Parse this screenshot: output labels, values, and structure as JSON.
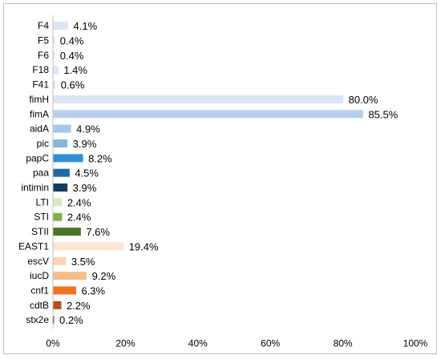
{
  "chart_data": {
    "type": "bar",
    "orientation": "horizontal",
    "title": "",
    "xlabel": "",
    "ylabel": "",
    "xlim": [
      0,
      100
    ],
    "grid": false,
    "legend": "none",
    "x_ticks": [
      "0%",
      "20%",
      "40%",
      "60%",
      "80%",
      "100%"
    ],
    "categories": [
      "F4",
      "F5",
      "F6",
      "F18",
      "F41",
      "fimH",
      "fimA",
      "aidA",
      "pic",
      "papC",
      "paa",
      "intimin",
      "LTI",
      "STI",
      "STII",
      "EAST1",
      "escV",
      "iucD",
      "cnf1",
      "cdtB",
      "stx2e"
    ],
    "values": [
      4.1,
      0.4,
      0.4,
      1.4,
      0.6,
      80.0,
      85.5,
      4.9,
      3.9,
      8.2,
      4.5,
      3.9,
      2.4,
      2.4,
      7.6,
      19.4,
      3.5,
      9.2,
      6.3,
      2.2,
      0.2
    ],
    "data_labels": [
      "4.1%",
      "0.4%",
      "0.4%",
      "1.4%",
      "0.6%",
      "80.0%",
      "85.5%",
      "4.9%",
      "3.9%",
      "8.2%",
      "4.5%",
      "3.9%",
      "2.4%",
      "2.4%",
      "7.6%",
      "19.4%",
      "3.5%",
      "9.2%",
      "6.3%",
      "2.2%",
      "0.2%"
    ],
    "colors": [
      "#dbe6f4",
      "#dbe6f4",
      "#dbe6f4",
      "#dbe6f4",
      "#dbe6f4",
      "#dbe6f4",
      "#b8d0ea",
      "#a9c8e8",
      "#8bb4dc",
      "#2e8fd6",
      "#1f6aa5",
      "#153d5c",
      "#d4e8c8",
      "#7fb04f",
      "#4e7327",
      "#fde5d0",
      "#fbd2b2",
      "#f8bd8c",
      "#f4721f",
      "#b4501d",
      "#8c3c14"
    ]
  }
}
